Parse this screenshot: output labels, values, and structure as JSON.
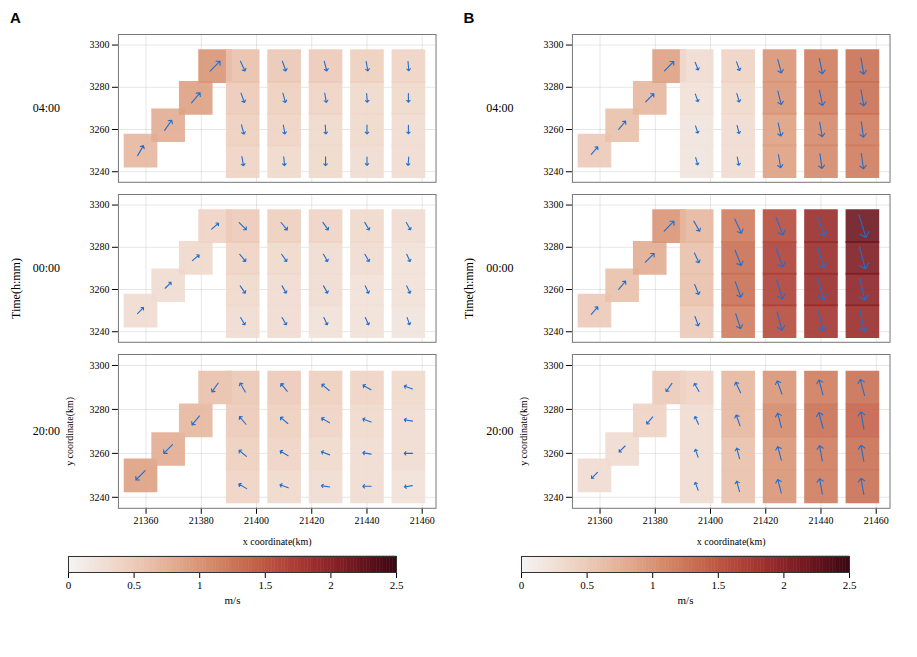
{
  "chart_data": [
    {
      "type": "quiver",
      "panel": "A",
      "xlabel": "x coordinate(km)",
      "ylabel": "y coordinate(km)",
      "zlabel": "Time(h:mm)",
      "xlim": [
        21350,
        21465
      ],
      "xticks": [
        21360,
        21380,
        21400,
        21420,
        21440,
        21460
      ],
      "ylim": [
        3235,
        3305
      ],
      "yticks": [
        3240,
        3260,
        3280,
        3300
      ],
      "x": [
        21358,
        21368,
        21378,
        21385,
        21395,
        21410,
        21425,
        21440,
        21455,
        21395,
        21410,
        21425,
        21440,
        21455,
        21395,
        21410,
        21425,
        21440,
        21455,
        21395,
        21410,
        21425,
        21440,
        21455
      ],
      "y": [
        3250,
        3262,
        3275,
        3290,
        3245,
        3245,
        3245,
        3245,
        3245,
        3260,
        3260,
        3260,
        3260,
        3260,
        3275,
        3275,
        3275,
        3275,
        3275,
        3290,
        3290,
        3290,
        3290,
        3290
      ],
      "layers": [
        {
          "time": "04:00",
          "speed": [
            0.7,
            0.8,
            0.9,
            1.0,
            0.4,
            0.35,
            0.35,
            0.3,
            0.3,
            0.45,
            0.4,
            0.35,
            0.35,
            0.3,
            0.5,
            0.45,
            0.4,
            0.35,
            0.35,
            0.6,
            0.55,
            0.5,
            0.45,
            0.4
          ],
          "direction": [
            30,
            35,
            40,
            45,
            170,
            175,
            180,
            180,
            185,
            165,
            170,
            175,
            180,
            180,
            160,
            165,
            170,
            175,
            180,
            155,
            160,
            165,
            170,
            175
          ]
        },
        {
          "time": "00:00",
          "speed": [
            0.3,
            0.3,
            0.35,
            0.4,
            0.3,
            0.3,
            0.25,
            0.25,
            0.2,
            0.35,
            0.3,
            0.3,
            0.25,
            0.25,
            0.4,
            0.35,
            0.3,
            0.3,
            0.25,
            0.5,
            0.45,
            0.4,
            0.35,
            0.3
          ],
          "direction": [
            45,
            45,
            50,
            50,
            150,
            150,
            155,
            155,
            160,
            145,
            150,
            150,
            155,
            155,
            140,
            145,
            150,
            150,
            155,
            135,
            140,
            145,
            150,
            150
          ]
        },
        {
          "time": "20:00",
          "speed": [
            0.9,
            0.8,
            0.7,
            0.6,
            0.4,
            0.35,
            0.3,
            0.3,
            0.25,
            0.45,
            0.4,
            0.35,
            0.3,
            0.3,
            0.5,
            0.45,
            0.4,
            0.35,
            0.3,
            0.55,
            0.5,
            0.45,
            0.4,
            0.35
          ],
          "direction": [
            225,
            225,
            220,
            215,
            300,
            290,
            280,
            270,
            260,
            310,
            300,
            290,
            280,
            270,
            320,
            310,
            300,
            290,
            280,
            330,
            320,
            310,
            300,
            290
          ]
        }
      ],
      "colorbar": {
        "range": [
          0,
          2.5
        ],
        "ticks": [
          0,
          0.5,
          1,
          1.5,
          2,
          2.5
        ],
        "label": "m/s"
      }
    },
    {
      "type": "quiver",
      "panel": "B",
      "xlabel": "x coordinate(km)",
      "ylabel": "y coordinate(km)",
      "zlabel": "Time(h:mm)",
      "xlim": [
        21350,
        21465
      ],
      "xticks": [
        21360,
        21380,
        21400,
        21420,
        21440,
        21460
      ],
      "ylim": [
        3235,
        3305
      ],
      "yticks": [
        3240,
        3260,
        3280,
        3300
      ],
      "x": [
        21358,
        21368,
        21378,
        21385,
        21395,
        21410,
        21425,
        21440,
        21455,
        21395,
        21410,
        21425,
        21440,
        21455,
        21395,
        21410,
        21425,
        21440,
        21455,
        21395,
        21410,
        21425,
        21440,
        21455
      ],
      "y": [
        3250,
        3262,
        3275,
        3290,
        3245,
        3245,
        3245,
        3245,
        3245,
        3260,
        3260,
        3260,
        3260,
        3260,
        3275,
        3275,
        3275,
        3275,
        3275,
        3290,
        3290,
        3290,
        3290,
        3290
      ],
      "layers": [
        {
          "time": "04:00",
          "speed": [
            0.5,
            0.6,
            0.7,
            0.9,
            0.2,
            0.3,
            0.9,
            1.1,
            1.2,
            0.2,
            0.3,
            0.9,
            1.1,
            1.2,
            0.25,
            0.35,
            1.0,
            1.2,
            1.3,
            0.3,
            0.4,
            1.0,
            1.2,
            1.3
          ],
          "direction": [
            40,
            40,
            45,
            45,
            165,
            168,
            170,
            172,
            172,
            162,
            165,
            168,
            170,
            172,
            160,
            163,
            166,
            168,
            170,
            158,
            160,
            165,
            168,
            170
          ]
        },
        {
          "time": "00:00",
          "speed": [
            0.5,
            0.6,
            0.8,
            1.0,
            0.5,
            1.2,
            1.6,
            1.8,
            1.9,
            0.6,
            1.3,
            1.7,
            1.9,
            2.0,
            0.6,
            1.3,
            1.7,
            1.9,
            2.1,
            0.7,
            1.2,
            1.6,
            1.9,
            2.2
          ],
          "direction": [
            40,
            40,
            45,
            45,
            160,
            162,
            165,
            165,
            168,
            158,
            160,
            163,
            165,
            167,
            155,
            158,
            160,
            163,
            165,
            150,
            155,
            158,
            160,
            163
          ]
        },
        {
          "time": "20:00",
          "speed": [
            0.3,
            0.3,
            0.4,
            0.5,
            0.3,
            0.6,
            1.0,
            1.2,
            1.3,
            0.3,
            0.6,
            1.0,
            1.2,
            1.3,
            0.3,
            0.7,
            1.1,
            1.3,
            1.4,
            0.4,
            0.7,
            1.0,
            1.2,
            1.3
          ],
          "direction": [
            225,
            225,
            220,
            215,
            340,
            345,
            345,
            350,
            350,
            340,
            345,
            345,
            350,
            350,
            335,
            340,
            345,
            345,
            350,
            330,
            335,
            340,
            345,
            345
          ]
        }
      ],
      "colorbar": {
        "range": [
          0,
          2.5
        ],
        "ticks": [
          0,
          0.5,
          1,
          1.5,
          2,
          2.5
        ],
        "label": "m/s"
      }
    }
  ]
}
